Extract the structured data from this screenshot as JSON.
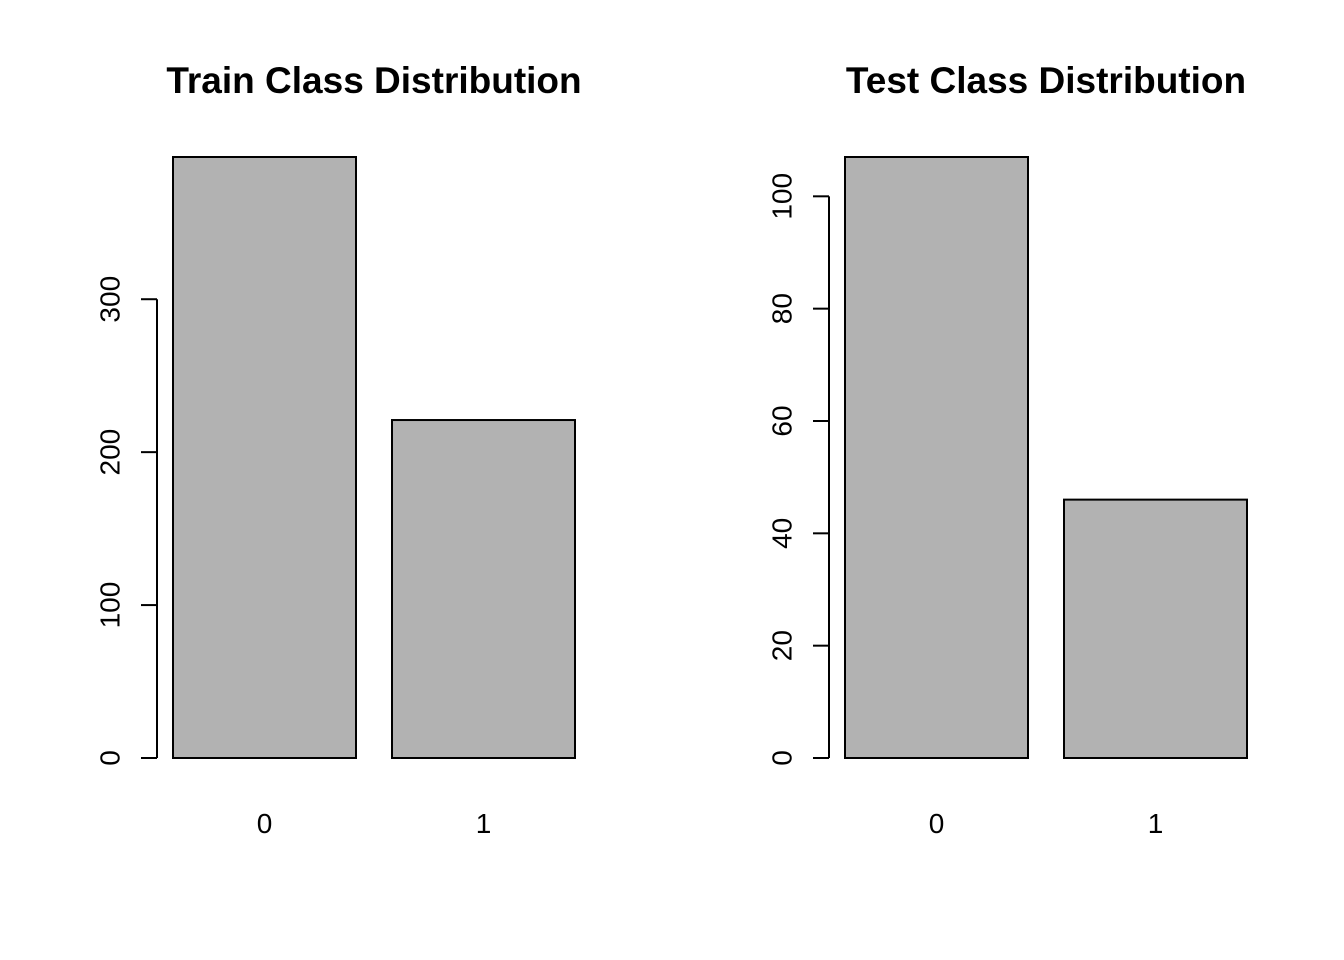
{
  "chart_data": [
    {
      "type": "bar",
      "title": "Train Class Distribution",
      "categories": [
        "0",
        "1"
      ],
      "values": [
        393,
        221
      ],
      "ylim": [
        0,
        393
      ],
      "yticks": [
        0,
        100,
        200,
        300
      ],
      "ytick_labels": [
        "0",
        "100",
        "200",
        "300"
      ],
      "xlabel": "",
      "ylabel": "",
      "grid": false,
      "bar_color": "#b2b2b2"
    },
    {
      "type": "bar",
      "title": "Test Class Distribution",
      "categories": [
        "0",
        "1"
      ],
      "values": [
        107,
        46
      ],
      "ylim": [
        0,
        107
      ],
      "yticks": [
        0,
        20,
        40,
        60,
        80,
        100
      ],
      "ytick_labels": [
        "0",
        "20",
        "40",
        "60",
        "80",
        "100"
      ],
      "xlabel": "",
      "ylabel": "",
      "grid": false,
      "bar_color": "#b2b2b2"
    }
  ]
}
